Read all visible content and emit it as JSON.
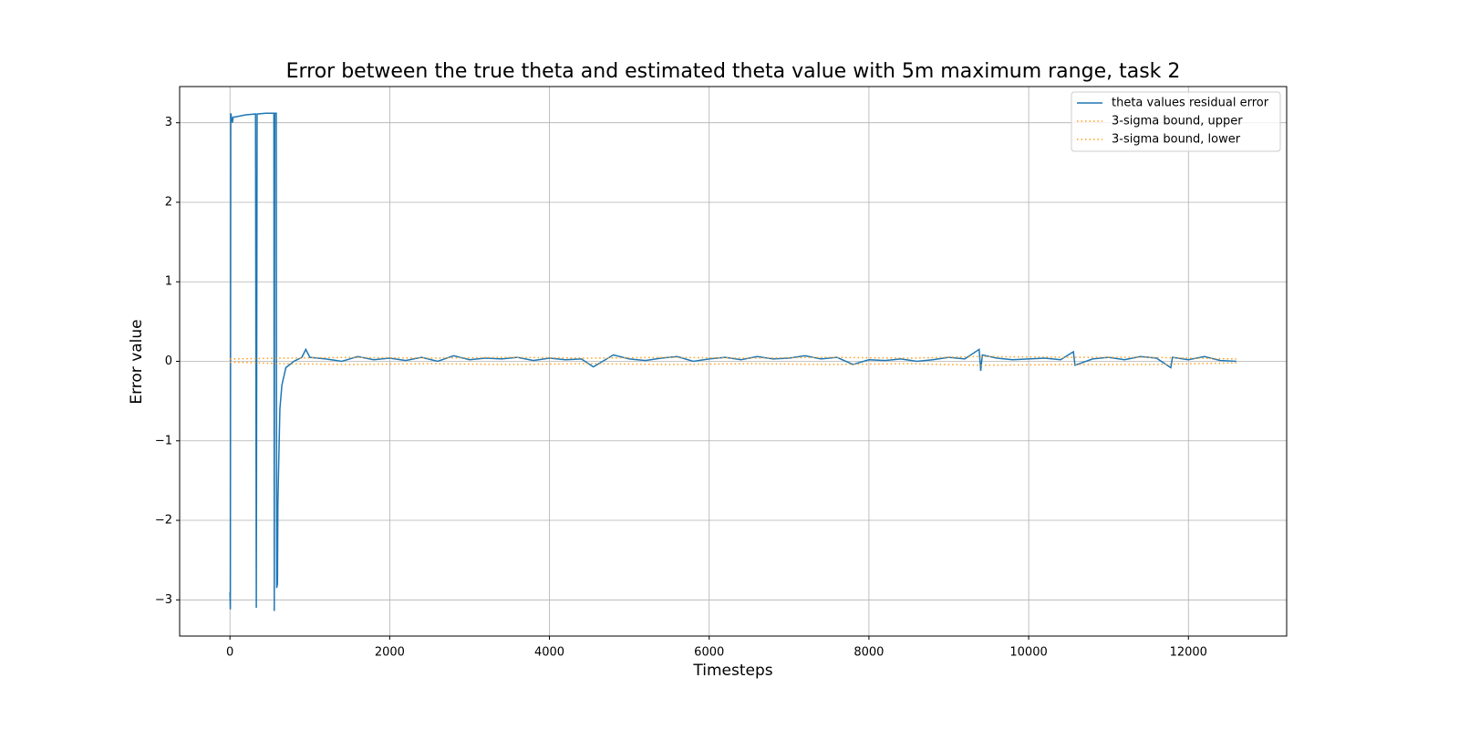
{
  "chart_data": {
    "type": "line",
    "title": "Error between the true theta and estimated theta value with 5m maximum range, task 2",
    "xlabel": "Timesteps",
    "ylabel": "Error value",
    "xlim": [
      -630,
      13230
    ],
    "ylim": [
      -3.455,
      3.455
    ],
    "xticks": [
      0,
      2000,
      4000,
      6000,
      8000,
      10000,
      12000
    ],
    "yticks": [
      {
        "value": -3,
        "label": "−3"
      },
      {
        "value": -2,
        "label": "−2"
      },
      {
        "value": -1,
        "label": "−1"
      },
      0,
      1,
      2,
      3
    ],
    "grid": true,
    "legend": "upper right",
    "series": [
      {
        "name": "theta values residual error",
        "color": "#1f77b4",
        "linestyle": "solid",
        "x": [
          0,
          5,
          10,
          30,
          40,
          100,
          200,
          320,
          330,
          340,
          450,
          550,
          555,
          560,
          580,
          585,
          595,
          600,
          610,
          625,
          650,
          700,
          800,
          900,
          950,
          1000,
          1200,
          1400,
          1600,
          1800,
          2000,
          2200,
          2400,
          2600,
          2800,
          3000,
          3200,
          3400,
          3600,
          3800,
          4000,
          4200,
          4400,
          4550,
          4700,
          4800,
          5000,
          5200,
          5400,
          5600,
          5800,
          6000,
          6200,
          6400,
          6600,
          6800,
          7000,
          7200,
          7400,
          7600,
          7800,
          8000,
          8200,
          8400,
          8600,
          8800,
          9000,
          9200,
          9380,
          9400,
          9420,
          9600,
          9800,
          10000,
          10200,
          10400,
          10560,
          10580,
          10800,
          11000,
          11200,
          11400,
          11600,
          11780,
          11800,
          12000,
          12200,
          12400,
          12600
        ],
        "values": [
          -2.9,
          -3.12,
          3.12,
          3.0,
          3.07,
          3.08,
          3.1,
          3.11,
          -3.1,
          3.11,
          3.12,
          3.12,
          -3.14,
          3.12,
          3.12,
          -2.85,
          -2.8,
          -1.8,
          -1.3,
          -0.6,
          -0.3,
          -0.08,
          0.0,
          0.05,
          0.15,
          0.05,
          0.03,
          0.0,
          0.06,
          0.02,
          0.04,
          0.01,
          0.05,
          0.0,
          0.07,
          0.02,
          0.04,
          0.03,
          0.05,
          0.01,
          0.04,
          0.02,
          0.03,
          -0.07,
          0.02,
          0.08,
          0.03,
          0.01,
          0.04,
          0.06,
          0.0,
          0.03,
          0.05,
          0.02,
          0.06,
          0.03,
          0.04,
          0.07,
          0.03,
          0.05,
          -0.04,
          0.02,
          0.01,
          0.03,
          0.0,
          0.02,
          0.05,
          0.03,
          0.15,
          -0.12,
          0.08,
          0.04,
          0.02,
          0.03,
          0.04,
          0.02,
          0.12,
          -0.05,
          0.03,
          0.05,
          0.02,
          0.06,
          0.04,
          -0.08,
          0.05,
          0.02,
          0.06,
          0.01,
          0.0
        ]
      },
      {
        "name": "3-sigma bound, upper",
        "color": "#ff9f1c",
        "linestyle": "dotted",
        "x": [
          0,
          700,
          1500,
          2500,
          3500,
          4500,
          5500,
          6500,
          7500,
          8500,
          9400,
          10500,
          11500,
          12600
        ],
        "values": [
          0.03,
          0.04,
          0.05,
          0.04,
          0.05,
          0.04,
          0.05,
          0.04,
          0.05,
          0.04,
          0.06,
          0.05,
          0.05,
          0.03
        ]
      },
      {
        "name": "3-sigma bound, lower",
        "color": "#ff9f1c",
        "linestyle": "dotted",
        "x": [
          0,
          700,
          1500,
          2500,
          3500,
          4500,
          5500,
          6500,
          7500,
          8500,
          9400,
          10500,
          11500,
          12600
        ],
        "values": [
          -0.01,
          -0.03,
          -0.04,
          -0.03,
          -0.04,
          -0.03,
          -0.04,
          -0.03,
          -0.04,
          -0.03,
          -0.05,
          -0.04,
          -0.04,
          -0.02
        ]
      }
    ]
  }
}
